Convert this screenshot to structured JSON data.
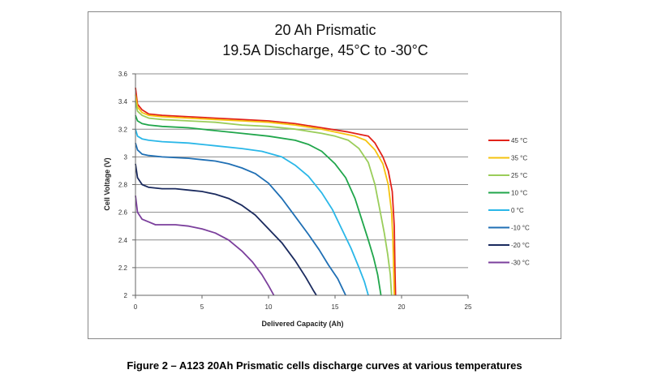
{
  "chart_data": {
    "type": "line",
    "title": "20 Ah Prismatic",
    "subtitle": "19.5A Discharge, 45°C to -30°C",
    "xlabel": "Delivered Capacity (Ah)",
    "ylabel": "Cell Voltage (V)",
    "xlim": [
      0,
      25
    ],
    "ylim": [
      2,
      3.6
    ],
    "xticks": [
      "0",
      "5",
      "10",
      "15",
      "20",
      "25"
    ],
    "yticks": [
      "2",
      "2.2",
      "2.4",
      "2.6",
      "2.8",
      "3",
      "3.2",
      "3.4",
      "3.6"
    ],
    "grid": "horizontal",
    "legend_position": "right",
    "series": [
      {
        "name": "45 °C",
        "color": "#e2231a",
        "points": [
          [
            0,
            3.5
          ],
          [
            0.15,
            3.38
          ],
          [
            0.5,
            3.34
          ],
          [
            1,
            3.31
          ],
          [
            2,
            3.3
          ],
          [
            4,
            3.29
          ],
          [
            6,
            3.28
          ],
          [
            8,
            3.27
          ],
          [
            10,
            3.26
          ],
          [
            12,
            3.24
          ],
          [
            14,
            3.21
          ],
          [
            16,
            3.18
          ],
          [
            17,
            3.16
          ],
          [
            17.5,
            3.15
          ],
          [
            18,
            3.1
          ],
          [
            18.6,
            3.0
          ],
          [
            19.0,
            2.9
          ],
          [
            19.3,
            2.75
          ],
          [
            19.45,
            2.5
          ],
          [
            19.5,
            2.2
          ],
          [
            19.55,
            2.0
          ]
        ]
      },
      {
        "name": "35 °C",
        "color": "#f5c30f",
        "points": [
          [
            0,
            3.45
          ],
          [
            0.15,
            3.36
          ],
          [
            0.5,
            3.32
          ],
          [
            1,
            3.3
          ],
          [
            2,
            3.29
          ],
          [
            4,
            3.28
          ],
          [
            6,
            3.27
          ],
          [
            8,
            3.26
          ],
          [
            10,
            3.25
          ],
          [
            12,
            3.23
          ],
          [
            14,
            3.2
          ],
          [
            15.5,
            3.17
          ],
          [
            16.5,
            3.15
          ],
          [
            17.3,
            3.12
          ],
          [
            18,
            3.05
          ],
          [
            18.6,
            2.95
          ],
          [
            19,
            2.8
          ],
          [
            19.25,
            2.6
          ],
          [
            19.35,
            2.4
          ],
          [
            19.4,
            2.2
          ],
          [
            19.45,
            2.0
          ]
        ]
      },
      {
        "name": "25 °C",
        "color": "#9acd5a",
        "points": [
          [
            0,
            3.4
          ],
          [
            0.15,
            3.33
          ],
          [
            0.5,
            3.3
          ],
          [
            1,
            3.28
          ],
          [
            2,
            3.27
          ],
          [
            4,
            3.26
          ],
          [
            6,
            3.25
          ],
          [
            8,
            3.23
          ],
          [
            10,
            3.22
          ],
          [
            12,
            3.2
          ],
          [
            14,
            3.17
          ],
          [
            15,
            3.15
          ],
          [
            16,
            3.12
          ],
          [
            16.8,
            3.06
          ],
          [
            17.5,
            2.96
          ],
          [
            18,
            2.8
          ],
          [
            18.4,
            2.6
          ],
          [
            18.7,
            2.45
          ],
          [
            18.95,
            2.3
          ],
          [
            19.15,
            2.15
          ],
          [
            19.25,
            2.0
          ]
        ]
      },
      {
        "name": "10 °C",
        "color": "#20a64b",
        "points": [
          [
            0,
            3.3
          ],
          [
            0.15,
            3.26
          ],
          [
            0.5,
            3.24
          ],
          [
            1,
            3.23
          ],
          [
            2,
            3.22
          ],
          [
            4,
            3.21
          ],
          [
            6,
            3.19
          ],
          [
            8,
            3.17
          ],
          [
            10,
            3.15
          ],
          [
            12,
            3.12
          ],
          [
            13,
            3.09
          ],
          [
            14,
            3.04
          ],
          [
            15,
            2.95
          ],
          [
            15.8,
            2.85
          ],
          [
            16.5,
            2.7
          ],
          [
            17,
            2.55
          ],
          [
            17.5,
            2.4
          ],
          [
            17.9,
            2.27
          ],
          [
            18.2,
            2.15
          ],
          [
            18.45,
            2.0
          ]
        ]
      },
      {
        "name": "0 °C",
        "color": "#2ab7e8",
        "points": [
          [
            0,
            3.2
          ],
          [
            0.15,
            3.15
          ],
          [
            0.5,
            3.13
          ],
          [
            1,
            3.12
          ],
          [
            2,
            3.11
          ],
          [
            4,
            3.1
          ],
          [
            6,
            3.08
          ],
          [
            8,
            3.06
          ],
          [
            9.5,
            3.04
          ],
          [
            11,
            3.0
          ],
          [
            12,
            2.94
          ],
          [
            13,
            2.86
          ],
          [
            14,
            2.74
          ],
          [
            14.8,
            2.62
          ],
          [
            15.5,
            2.48
          ],
          [
            16.2,
            2.34
          ],
          [
            16.8,
            2.2
          ],
          [
            17.2,
            2.1
          ],
          [
            17.5,
            2.0
          ]
        ]
      },
      {
        "name": "-10 °C",
        "color": "#1f6fb4",
        "points": [
          [
            0,
            3.1
          ],
          [
            0.15,
            3.05
          ],
          [
            0.5,
            3.02
          ],
          [
            1,
            3.01
          ],
          [
            2,
            3.0
          ],
          [
            4,
            2.99
          ],
          [
            5,
            2.98
          ],
          [
            6,
            2.97
          ],
          [
            7,
            2.95
          ],
          [
            8,
            2.92
          ],
          [
            9,
            2.88
          ],
          [
            10,
            2.81
          ],
          [
            11,
            2.7
          ],
          [
            12,
            2.57
          ],
          [
            13,
            2.44
          ],
          [
            13.8,
            2.33
          ],
          [
            14.5,
            2.22
          ],
          [
            15.2,
            2.12
          ],
          [
            15.8,
            2.0
          ]
        ]
      },
      {
        "name": "-20 °C",
        "color": "#1a2a5e",
        "points": [
          [
            0,
            2.95
          ],
          [
            0.15,
            2.85
          ],
          [
            0.5,
            2.8
          ],
          [
            1,
            2.78
          ],
          [
            2,
            2.77
          ],
          [
            3,
            2.77
          ],
          [
            4,
            2.76
          ],
          [
            5,
            2.75
          ],
          [
            6,
            2.73
          ],
          [
            7,
            2.7
          ],
          [
            8,
            2.65
          ],
          [
            9,
            2.58
          ],
          [
            10,
            2.48
          ],
          [
            11,
            2.38
          ],
          [
            12,
            2.25
          ],
          [
            12.8,
            2.13
          ],
          [
            13.4,
            2.03
          ],
          [
            13.6,
            2.0
          ]
        ]
      },
      {
        "name": "-30 °C",
        "color": "#7b3f9c",
        "points": [
          [
            0,
            2.72
          ],
          [
            0.15,
            2.6
          ],
          [
            0.5,
            2.55
          ],
          [
            1,
            2.53
          ],
          [
            1.5,
            2.51
          ],
          [
            3,
            2.51
          ],
          [
            4,
            2.5
          ],
          [
            5,
            2.48
          ],
          [
            6,
            2.45
          ],
          [
            7,
            2.4
          ],
          [
            8,
            2.32
          ],
          [
            8.8,
            2.24
          ],
          [
            9.5,
            2.15
          ],
          [
            10,
            2.07
          ],
          [
            10.4,
            2.0
          ]
        ]
      }
    ]
  },
  "caption": "Figure 2 – A123 20Ah Prismatic cells discharge curves at various temperatures"
}
